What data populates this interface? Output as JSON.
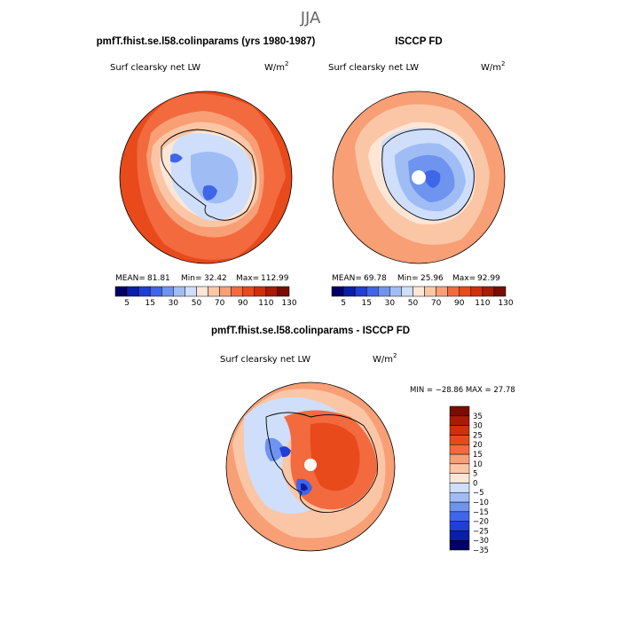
{
  "super_title": "JJA",
  "panels": {
    "model": {
      "title": "pmfT.fhist.se.l58.colinparams (yrs 1980-1987)",
      "variable": "Surf clearsky net LW",
      "units_base": "W/m",
      "units_exp": "2",
      "stats": {
        "mean_label": "MEAN=",
        "mean": "81.81",
        "min_label": "Min=",
        "min": "32.42",
        "max_label": "Max=",
        "max": "112.99"
      }
    },
    "obs": {
      "title": "ISCCP FD",
      "variable": "Surf clearsky net LW",
      "units_base": "W/m",
      "units_exp": "2",
      "stats": {
        "mean_label": "MEAN=",
        "mean": "69.78",
        "min_label": "Min=",
        "min": "25.96",
        "max_label": "Max=",
        "max": "92.99"
      }
    },
    "diff": {
      "title": "pmfT.fhist.se.l58.colinparams - ISCCP FD",
      "variable": "Surf clearsky net LW",
      "units_base": "W/m",
      "units_exp": "2",
      "minmax_text": "MIN = −28.86 MAX =  27.78"
    }
  },
  "chart_data": [
    {
      "type": "heatmap",
      "projection": "south-polar-stereographic",
      "title": "pmfT.fhist.se.l58.colinparams (yrs 1980-1987)",
      "variable": "Surf clearsky net LW",
      "units": "W/m^2",
      "stats": {
        "mean": 81.81,
        "min": 32.42,
        "max": 112.99
      },
      "colorbar": {
        "orientation": "horizontal",
        "levels": [
          5,
          10,
          15,
          20,
          30,
          40,
          50,
          60,
          70,
          80,
          90,
          100,
          110,
          120,
          130
        ],
        "tick_labels": [
          "5",
          "15",
          "30",
          "50",
          "70",
          "90",
          "110",
          "130"
        ],
        "colors": [
          "#000066",
          "#0a1fa8",
          "#1f3fd6",
          "#3f66e8",
          "#6e94f0",
          "#9fbcf5",
          "#cfdefa",
          "#fde6d6",
          "#fbc6a6",
          "#f89f76",
          "#f36a3e",
          "#e84a1c",
          "#d12e0c",
          "#a81c05",
          "#7a0c00"
        ]
      },
      "regions": [
        {
          "region": "ocean north of 60S",
          "approx_value": 105
        },
        {
          "region": "sea-ice margin",
          "approx_value": 75
        },
        {
          "region": "Antarctic coast",
          "approx_value": 60
        },
        {
          "region": "East Antarctic plateau",
          "approx_value": 40
        }
      ]
    },
    {
      "type": "heatmap",
      "projection": "south-polar-stereographic",
      "title": "ISCCP FD",
      "variable": "Surf clearsky net LW",
      "units": "W/m^2",
      "stats": {
        "mean": 69.78,
        "min": 25.96,
        "max": 92.99
      },
      "colorbar": {
        "orientation": "horizontal",
        "levels": [
          5,
          10,
          15,
          20,
          30,
          40,
          50,
          60,
          70,
          80,
          90,
          100,
          110,
          120,
          130
        ],
        "tick_labels": [
          "5",
          "15",
          "30",
          "50",
          "70",
          "90",
          "110",
          "130"
        ],
        "colors": [
          "#000066",
          "#0a1fa8",
          "#1f3fd6",
          "#3f66e8",
          "#6e94f0",
          "#9fbcf5",
          "#cfdefa",
          "#fde6d6",
          "#fbc6a6",
          "#f89f76",
          "#f36a3e",
          "#e84a1c",
          "#d12e0c",
          "#a81c05",
          "#7a0c00"
        ]
      },
      "regions": [
        {
          "region": "ocean",
          "approx_value": 85
        },
        {
          "region": "Antarctic coast",
          "approx_value": 65
        },
        {
          "region": "East Antarctic plateau",
          "approx_value": 30
        },
        {
          "region": "south pole (missing)",
          "approx_value": null
        }
      ]
    },
    {
      "type": "heatmap",
      "projection": "south-polar-stereographic",
      "title": "pmfT.fhist.se.l58.colinparams - ISCCP FD",
      "variable": "Surf clearsky net LW",
      "units": "W/m^2",
      "stats": {
        "min": -28.86,
        "max": 27.78
      },
      "colorbar": {
        "orientation": "vertical",
        "levels": [
          -35,
          -30,
          -25,
          -20,
          -15,
          -10,
          -5,
          0,
          5,
          10,
          15,
          20,
          25,
          30,
          35
        ],
        "tick_labels": [
          "35",
          "30",
          "25",
          "20",
          "15",
          "10",
          "5",
          "0",
          "−5",
          "−10",
          "−15",
          "−20",
          "−25",
          "−30",
          "−35"
        ],
        "colors": [
          "#000066",
          "#0a1fa8",
          "#1f3fd6",
          "#3f66e8",
          "#6e94f0",
          "#9fbcf5",
          "#cfdefa",
          "#fde6d6",
          "#fbc6a6",
          "#f89f76",
          "#f36a3e",
          "#e84a1c",
          "#d12e0c",
          "#a81c05",
          "#7a0c00"
        ]
      },
      "regions": [
        {
          "region": "ocean",
          "approx_value": 20
        },
        {
          "region": "Antarctic plateau",
          "approx_value": 15
        },
        {
          "region": "sea-ice zone",
          "approx_value": -5
        },
        {
          "region": "Ross/Weddell embayments",
          "approx_value": -25
        }
      ]
    }
  ]
}
